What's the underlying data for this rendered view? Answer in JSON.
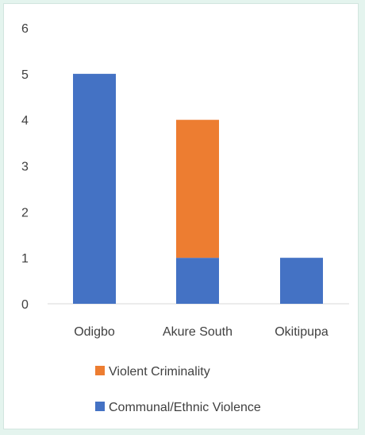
{
  "chart_data": {
    "type": "bar",
    "stacked": true,
    "categories": [
      "Odigbo",
      "Akure South",
      "Okitipupa"
    ],
    "series": [
      {
        "name": "Communal/Ethnic Violence",
        "color": "#4472c4",
        "values": [
          5,
          1,
          1
        ]
      },
      {
        "name": "Violent Criminality",
        "color": "#ed7d31",
        "values": [
          0,
          3,
          0
        ]
      }
    ],
    "yticks": [
      "0",
      "1",
      "2",
      "3",
      "4",
      "5",
      "6"
    ],
    "ylim": [
      0,
      6
    ],
    "grid": false,
    "legend_position": "bottom",
    "legend_order": [
      1,
      0
    ]
  }
}
